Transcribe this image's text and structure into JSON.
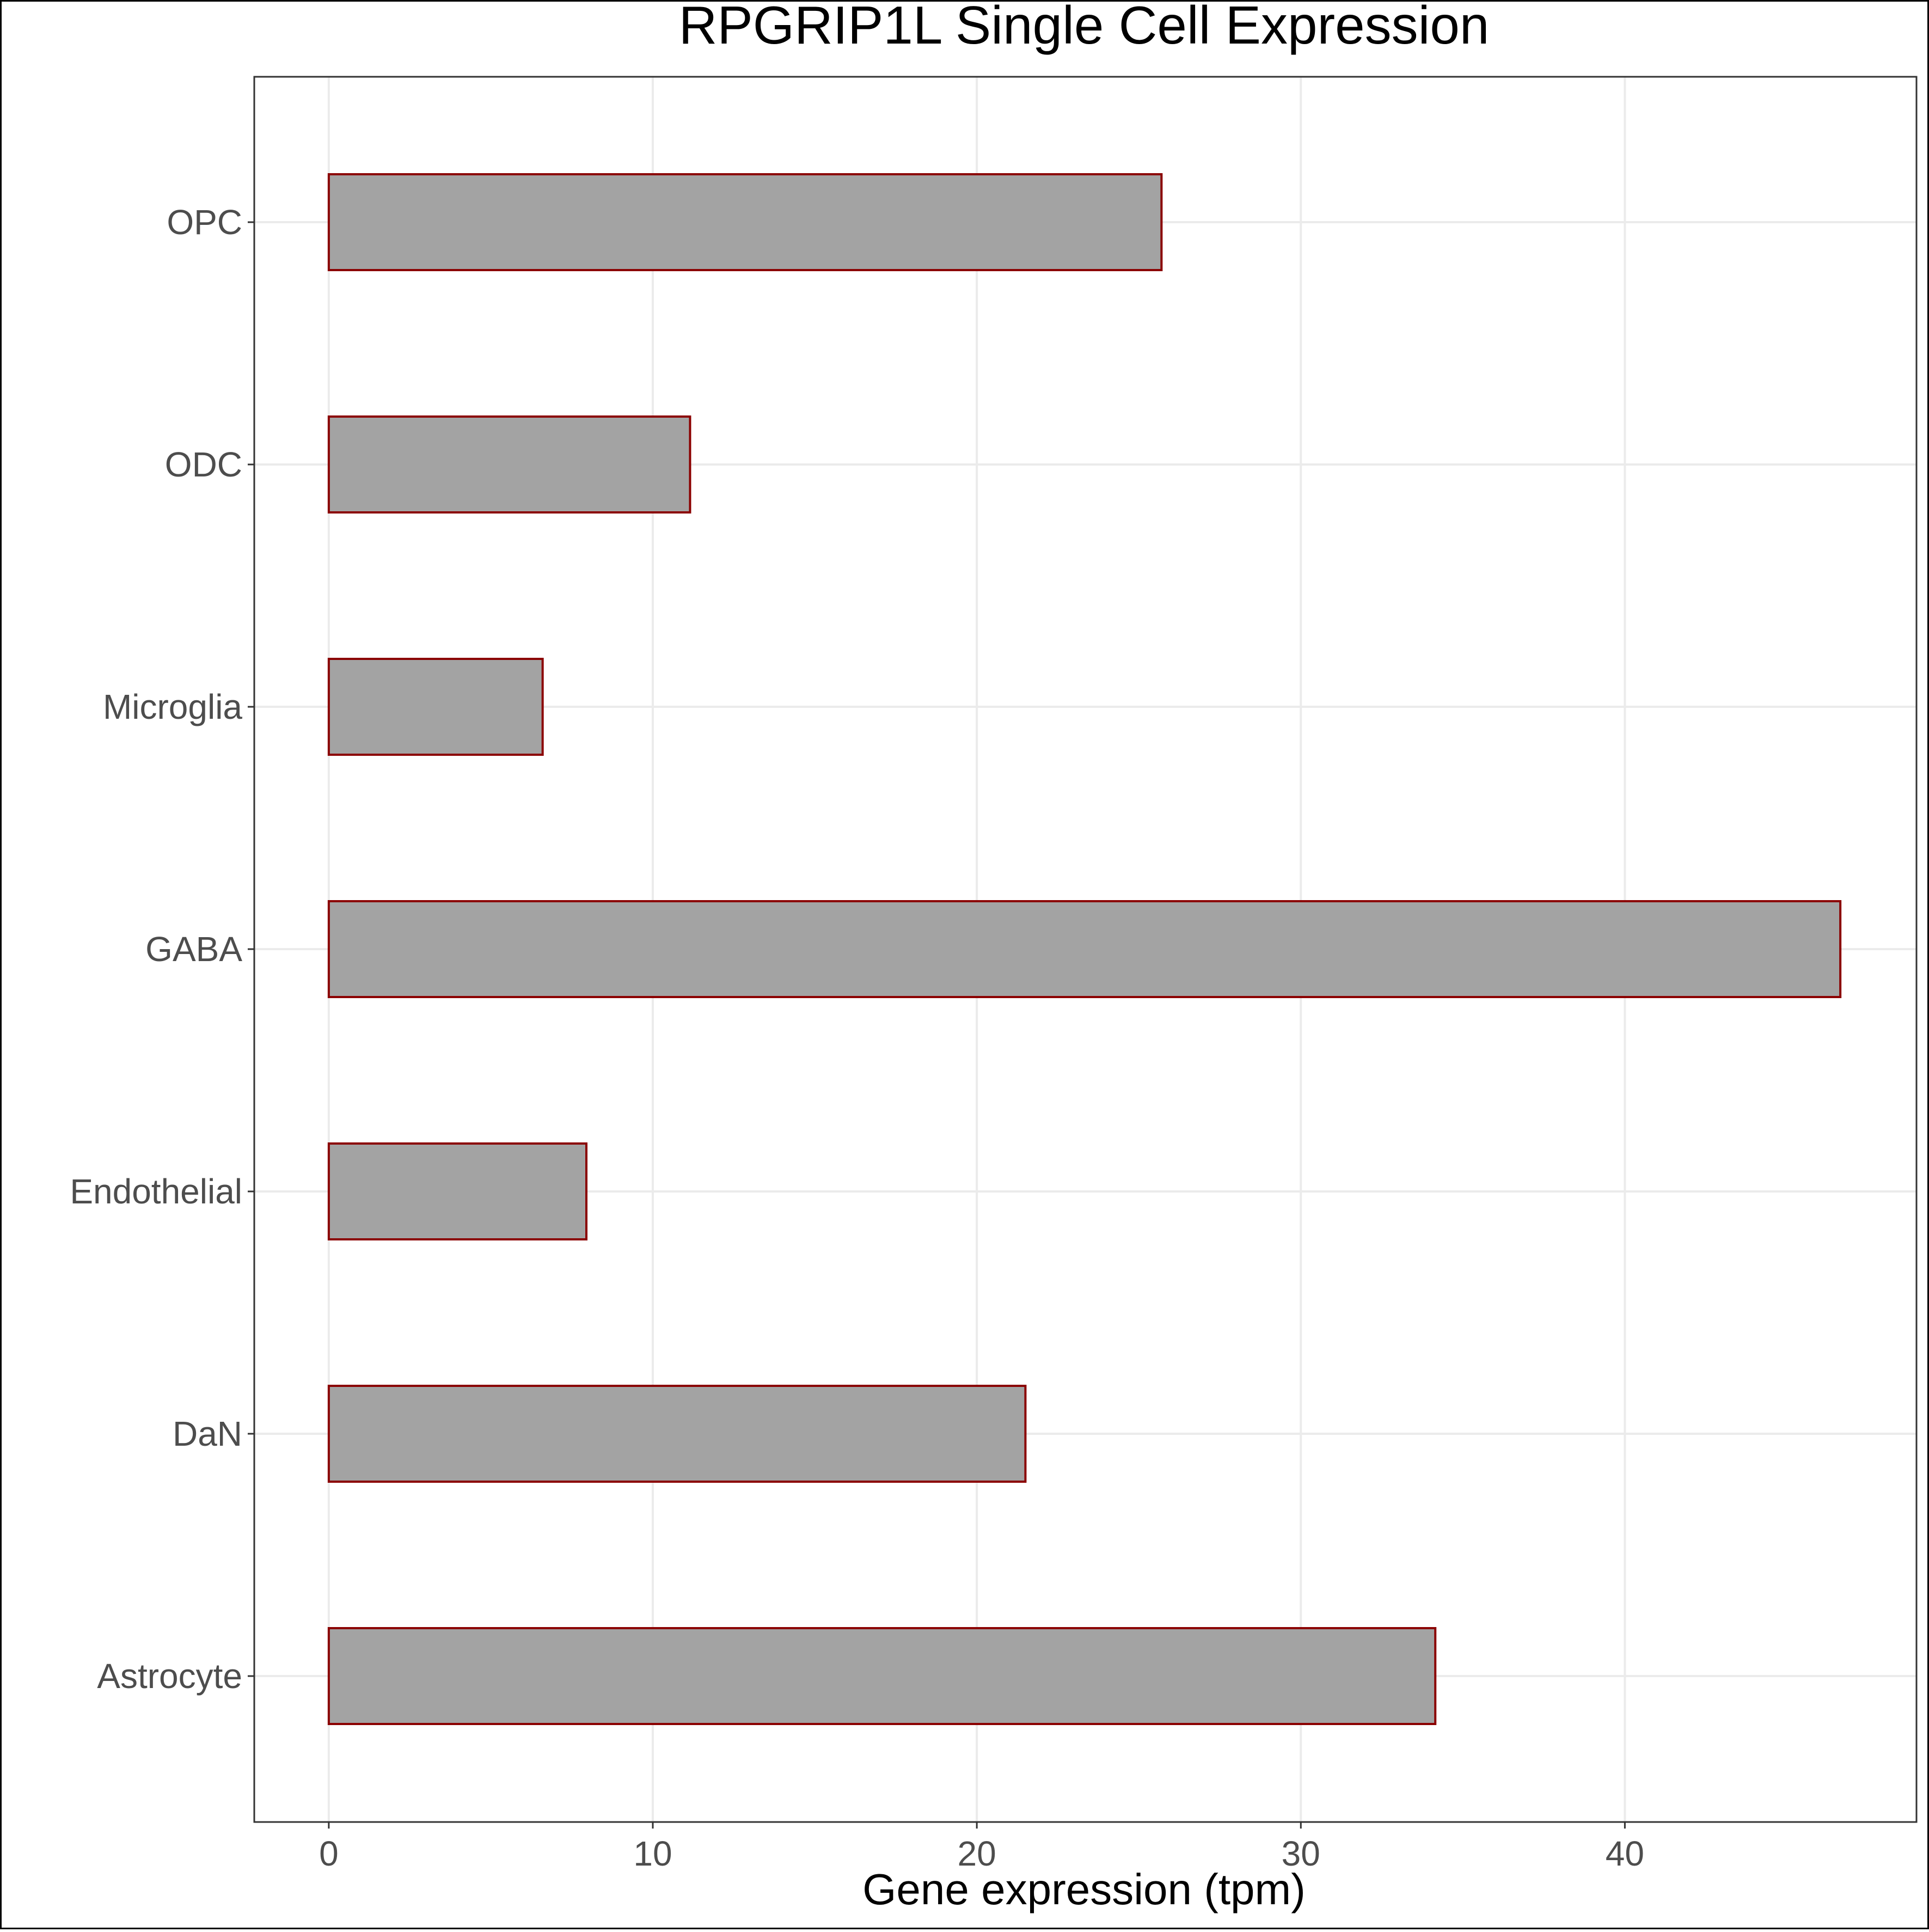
{
  "chart_data": {
    "type": "bar",
    "orientation": "horizontal",
    "title": "RPGRIP1L Single Cell Expression",
    "xlabel": "Gene expression (tpm)",
    "ylabel": "",
    "categories": [
      "OPC",
      "ODC",
      "Microglia",
      "GABA",
      "Endothelial",
      "DaN",
      "Astrocyte"
    ],
    "values": [
      25.7,
      11.15,
      6.6,
      46.65,
      7.95,
      21.5,
      34.15
    ],
    "xlim": [
      -2.3,
      49.0
    ],
    "xticks": [
      0,
      10,
      20,
      30,
      40
    ],
    "xtick_labels": [
      "0",
      "10",
      "20",
      "30",
      "40"
    ],
    "grid": true,
    "legend": "none",
    "colors": {
      "bar_fill": "#a3a3a3",
      "bar_stroke": "#8b0000",
      "grid": "#ebebeb",
      "panel_border": "#333333",
      "tick_label": "#4d4d4d",
      "text": "#000000"
    }
  }
}
